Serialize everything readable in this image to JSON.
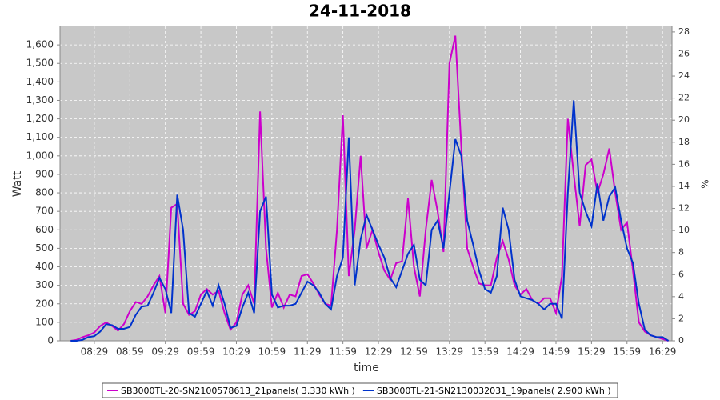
{
  "chart_data": {
    "type": "line",
    "title": "24-11-2018",
    "x_label": "time",
    "y_label": "Watt",
    "y2_label": "%",
    "x": [
      "08:09",
      "08:14",
      "08:19",
      "08:24",
      "08:29",
      "08:34",
      "08:39",
      "08:44",
      "08:49",
      "08:54",
      "08:59",
      "09:04",
      "09:09",
      "09:14",
      "09:19",
      "09:24",
      "09:29",
      "09:34",
      "09:39",
      "09:44",
      "09:49",
      "09:54",
      "09:59",
      "10:04",
      "10:09",
      "10:14",
      "10:19",
      "10:24",
      "10:29",
      "10:34",
      "10:39",
      "10:44",
      "10:49",
      "10:54",
      "10:59",
      "11:04",
      "11:09",
      "11:14",
      "11:19",
      "11:24",
      "11:29",
      "11:34",
      "11:39",
      "11:44",
      "11:49",
      "11:54",
      "11:59",
      "12:04",
      "12:09",
      "12:14",
      "12:19",
      "12:24",
      "12:29",
      "12:34",
      "12:39",
      "12:44",
      "12:49",
      "12:54",
      "12:59",
      "13:04",
      "13:09",
      "13:14",
      "13:19",
      "13:24",
      "13:29",
      "13:34",
      "13:39",
      "13:44",
      "13:49",
      "13:54",
      "13:59",
      "14:04",
      "14:09",
      "14:14",
      "14:19",
      "14:24",
      "14:29",
      "14:34",
      "14:39",
      "14:44",
      "14:49",
      "14:54",
      "14:59",
      "15:04",
      "15:09",
      "15:14",
      "15:19",
      "15:24",
      "15:29",
      "15:34",
      "15:39",
      "15:44",
      "15:49",
      "15:54",
      "15:59",
      "16:04",
      "16:09",
      "16:14",
      "16:19",
      "16:24",
      "16:29",
      "16:34"
    ],
    "series": [
      {
        "name": "SB3000TL-20-SN2100578613_21panels( 3.330 kWh )",
        "color": "#cc00cc",
        "values": [
          0,
          5,
          20,
          30,
          45,
          80,
          100,
          80,
          55,
          90,
          160,
          210,
          200,
          240,
          300,
          350,
          150,
          720,
          740,
          200,
          140,
          160,
          250,
          280,
          250,
          270,
          150,
          60,
          100,
          250,
          300,
          200,
          1240,
          500,
          180,
          260,
          180,
          250,
          240,
          350,
          360,
          310,
          250,
          200,
          190,
          600,
          1220,
          350,
          600,
          1000,
          500,
          600,
          480,
          380,
          330,
          420,
          430,
          770,
          400,
          240,
          600,
          870,
          700,
          480,
          1500,
          1650,
          1050,
          500,
          400,
          310,
          300,
          300,
          450,
          540,
          440,
          300,
          250,
          280,
          220,
          200,
          230,
          230,
          150,
          350,
          1200,
          900,
          620,
          950,
          980,
          800,
          900,
          1040,
          800,
          600,
          640,
          380,
          100,
          50,
          30,
          20,
          10,
          0
        ]
      },
      {
        "name": "SB3000TL-21-SN2130032031_19panels( 2.900 kWh )",
        "color": "#0033cc",
        "values": [
          0,
          0,
          5,
          20,
          25,
          50,
          90,
          85,
          65,
          65,
          75,
          140,
          185,
          190,
          260,
          340,
          280,
          150,
          790,
          600,
          150,
          130,
          200,
          270,
          190,
          300,
          200,
          70,
          80,
          180,
          260,
          150,
          700,
          780,
          250,
          180,
          190,
          190,
          200,
          260,
          320,
          300,
          260,
          200,
          170,
          350,
          450,
          1100,
          300,
          550,
          680,
          600,
          520,
          450,
          340,
          290,
          380,
          470,
          520,
          330,
          300,
          600,
          650,
          500,
          800,
          1090,
          1000,
          650,
          520,
          380,
          280,
          260,
          350,
          720,
          600,
          330,
          240,
          230,
          220,
          200,
          170,
          200,
          200,
          120,
          800,
          1300,
          800,
          700,
          620,
          850,
          650,
          780,
          830,
          650,
          500,
          420,
          200,
          60,
          30,
          20,
          20,
          0
        ]
      }
    ],
    "xlim": [
      "08:00",
      "16:37"
    ],
    "xticks": [
      "08:29",
      "08:59",
      "09:29",
      "09:59",
      "10:29",
      "10:59",
      "11:29",
      "11:59",
      "12:29",
      "12:59",
      "13:29",
      "13:59",
      "14:29",
      "14:59",
      "15:29",
      "15:59",
      "16:29"
    ],
    "ylim": [
      0,
      1700
    ],
    "yticks": [
      0,
      100,
      200,
      300,
      400,
      500,
      600,
      700,
      800,
      900,
      {
        "value": 1000,
        "label": "1,000"
      },
      {
        "value": 1100,
        "label": "1,100"
      },
      {
        "value": 1200,
        "label": "1,200"
      },
      {
        "value": 1300,
        "label": "1,300"
      },
      {
        "value": 1400,
        "label": "1,400"
      },
      {
        "value": 1500,
        "label": "1,500"
      },
      {
        "value": 1600,
        "label": "1,600"
      }
    ],
    "y2lim": [
      0,
      28.5
    ],
    "y2ticks": [
      0,
      2,
      4,
      6,
      8,
      10,
      12,
      14,
      16,
      18,
      20,
      22,
      24,
      26,
      28
    ],
    "grid": true
  }
}
